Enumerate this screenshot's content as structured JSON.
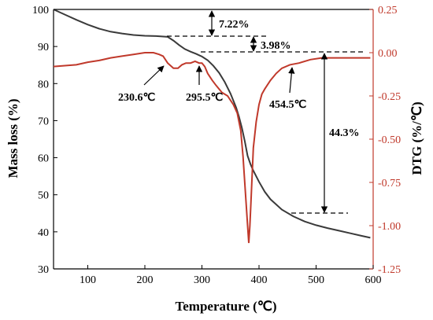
{
  "chart_data": {
    "type": "line",
    "xlabel": "Temperature (℃)",
    "ylabel_left": "Mass loss (%)",
    "ylabel_right": "DTG (%/℃)",
    "xlim": [
      40,
      600
    ],
    "ylim_left": [
      30,
      100
    ],
    "ylim_right": [
      -1.25,
      0.25
    ],
    "x_ticks": [
      "100",
      "200",
      "300",
      "400",
      "500",
      "600"
    ],
    "x_tick_values": [
      100,
      200,
      300,
      400,
      500,
      600
    ],
    "y_left_ticks": [
      "30",
      "40",
      "50",
      "60",
      "70",
      "80",
      "90",
      "100"
    ],
    "y_left_tick_values": [
      30,
      40,
      50,
      60,
      70,
      80,
      90,
      100
    ],
    "y_right_ticks": [
      "0.25",
      "0.00",
      "-0.25",
      "-0.50",
      "-0.75",
      "-1.00",
      "-1.25"
    ],
    "y_right_tick_values": [
      0.25,
      0.0,
      -0.25,
      -0.5,
      -0.75,
      -1.0,
      -1.25
    ],
    "colors": {
      "mass": "#3a3a3a",
      "dtg": "#c0392b",
      "right_axis": "#c0392b"
    },
    "series": [
      {
        "axis": "left",
        "x": [
          40,
          60,
          80,
          100,
          120,
          140,
          160,
          180,
          200,
          220,
          240,
          250,
          260,
          270,
          280,
          290,
          300,
          310,
          320,
          330,
          340,
          350,
          360,
          365,
          370,
          375,
          380,
          385,
          390,
          400,
          410,
          420,
          440,
          460,
          480,
          500,
          520,
          540,
          560,
          580,
          595
        ],
        "values": [
          100,
          98.6,
          97.2,
          95.9,
          94.8,
          94.0,
          93.5,
          93.1,
          92.9,
          92.8,
          92.6,
          91.6,
          90.4,
          89.3,
          88.6,
          88.0,
          87.3,
          86.3,
          84.8,
          82.9,
          80.4,
          77.3,
          73.5,
          71.0,
          68.0,
          64.5,
          60.5,
          58.3,
          56.5,
          53.5,
          50.8,
          48.8,
          46.0,
          44.2,
          42.8,
          41.8,
          41.0,
          40.3,
          39.6,
          38.9,
          38.4
        ]
      },
      {
        "axis": "right",
        "x": [
          40,
          60,
          80,
          100,
          120,
          140,
          160,
          180,
          200,
          215,
          225,
          232,
          240,
          250,
          258,
          265,
          272,
          280,
          288,
          295,
          300,
          305,
          310,
          318,
          325,
          335,
          345,
          355,
          362,
          368,
          372,
          376,
          380,
          382,
          384,
          386,
          390,
          395,
          400,
          405,
          410,
          420,
          430,
          440,
          454,
          470,
          490,
          510,
          530,
          550,
          570,
          595
        ],
        "values": [
          -0.08,
          -0.075,
          -0.07,
          -0.055,
          -0.045,
          -0.03,
          -0.02,
          -0.01,
          0.0,
          0.0,
          -0.01,
          -0.02,
          -0.06,
          -0.09,
          -0.09,
          -0.07,
          -0.06,
          -0.06,
          -0.05,
          -0.06,
          -0.06,
          -0.08,
          -0.12,
          -0.16,
          -0.19,
          -0.23,
          -0.25,
          -0.3,
          -0.35,
          -0.45,
          -0.6,
          -0.8,
          -1.0,
          -1.1,
          -1.0,
          -0.85,
          -0.55,
          -0.4,
          -0.3,
          -0.24,
          -0.21,
          -0.16,
          -0.12,
          -0.09,
          -0.07,
          -0.06,
          -0.04,
          -0.03,
          -0.03,
          -0.03,
          -0.03,
          -0.03
        ]
      }
    ],
    "annotations": [
      {
        "text": "7.22%"
      },
      {
        "text": "3.98%"
      },
      {
        "text": "44.3%"
      },
      {
        "text": "230.6℃"
      },
      {
        "text": "295.5℃"
      },
      {
        "text": "454.5℃"
      }
    ]
  }
}
